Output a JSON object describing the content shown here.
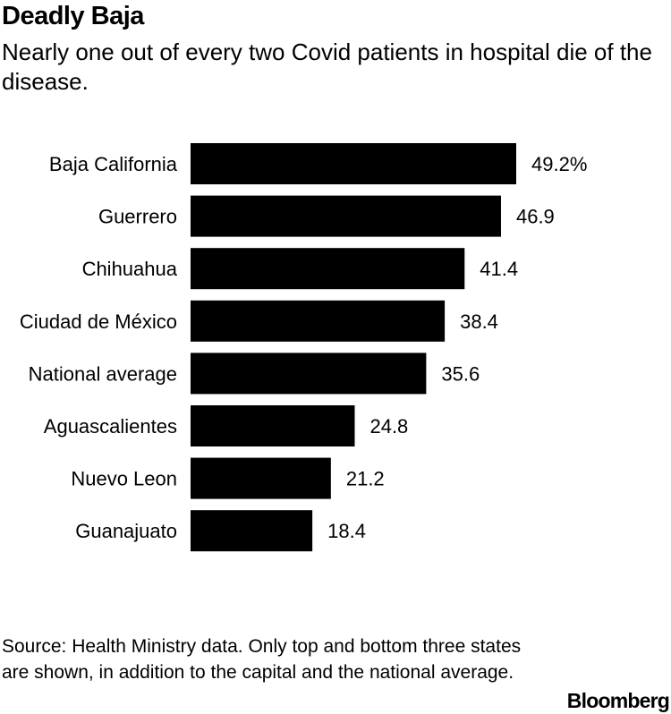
{
  "chart_data": {
    "type": "bar",
    "orientation": "horizontal",
    "title": "Deadly Baja",
    "subtitle": "Nearly one out of every two Covid patients in hospital die of the disease.",
    "categories": [
      "Baja California",
      "Guerrero",
      "Chihuahua",
      "Ciudad de México",
      "National average",
      "Aguascalientes",
      "Nuevo Leon",
      "Guanajuato"
    ],
    "values": [
      49.2,
      46.9,
      41.4,
      38.4,
      35.6,
      24.8,
      21.2,
      18.4
    ],
    "value_labels": [
      "49.2%",
      "46.9",
      "41.4",
      "38.4",
      "35.6",
      "24.8",
      "21.2",
      "18.4"
    ],
    "xlabel": "",
    "ylabel": "",
    "xlim": [
      0,
      49.2
    ],
    "unit": "%",
    "bar_color": "#000000",
    "grid": false
  },
  "footer": {
    "source": "Source: Health Ministry data. Only top and bottom three states are shown, in addition to the capital and the national average.",
    "brand": "Bloomberg"
  }
}
